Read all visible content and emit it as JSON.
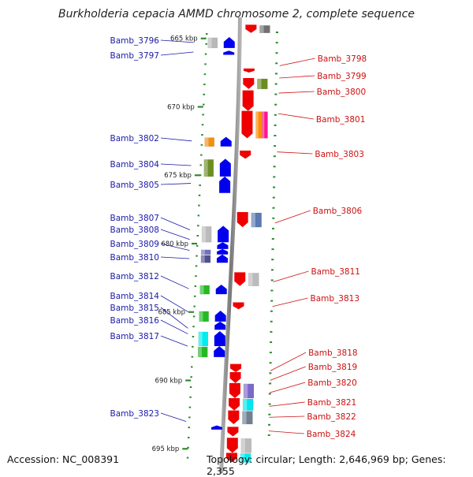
{
  "title": "Burkholderia cepacia AMMD chromosome 2, complete sequence",
  "footer": {
    "accession": "Accession: NC_008391",
    "topology": "Topology: circular; Length: 2,646,969 bp; Genes: 2,355"
  },
  "scale_marks": [
    {
      "label": "665 kbp",
      "kbp": 665
    },
    {
      "label": "670 kbp",
      "kbp": 670
    },
    {
      "label": "675 kbp",
      "kbp": 675
    },
    {
      "label": "680 kbp",
      "kbp": 680
    },
    {
      "label": "685 kbp",
      "kbp": 685
    },
    {
      "label": "690 kbp",
      "kbp": 690
    },
    {
      "label": "695 kbp",
      "kbp": 695
    }
  ],
  "genes_left": [
    {
      "label": "Bamb_3796",
      "kbp": 665.3
    },
    {
      "label": "Bamb_3797",
      "kbp": 666.0
    },
    {
      "label": "Bamb_3802",
      "kbp": 672.5
    },
    {
      "label": "Bamb_3804",
      "kbp": 674.3
    },
    {
      "label": "Bamb_3805",
      "kbp": 675.6
    },
    {
      "label": "Bamb_3807",
      "kbp": 679.0
    },
    {
      "label": "Bamb_3808",
      "kbp": 679.7
    },
    {
      "label": "Bamb_3809",
      "kbp": 680.5
    },
    {
      "label": "Bamb_3810",
      "kbp": 681.1
    },
    {
      "label": "Bamb_3812",
      "kbp": 683.3
    },
    {
      "label": "Bamb_3814",
      "kbp": 685.0
    },
    {
      "label": "Bamb_3815",
      "kbp": 686.2
    },
    {
      "label": "Bamb_3816",
      "kbp": 686.6
    },
    {
      "label": "Bamb_3817",
      "kbp": 687.5
    },
    {
      "label": "Bamb_3823",
      "kbp": 693.0
    }
  ],
  "genes_right": [
    {
      "label": "Bamb_3798",
      "kbp": 667.0
    },
    {
      "label": "Bamb_3799",
      "kbp": 667.9
    },
    {
      "label": "Bamb_3800",
      "kbp": 669.0
    },
    {
      "label": "Bamb_3801",
      "kbp": 670.5
    },
    {
      "label": "Bamb_3803",
      "kbp": 673.3
    },
    {
      "label": "Bamb_3806",
      "kbp": 678.5
    },
    {
      "label": "Bamb_3811",
      "kbp": 682.8
    },
    {
      "label": "Bamb_3813",
      "kbp": 684.6
    },
    {
      "label": "Bamb_3818",
      "kbp": 689.3
    },
    {
      "label": "Bamb_3819",
      "kbp": 690.0
    },
    {
      "label": "Bamb_3820",
      "kbp": 690.9
    },
    {
      "label": "Bamb_3821",
      "kbp": 691.9
    },
    {
      "label": "Bamb_3822",
      "kbp": 692.7
    },
    {
      "label": "Bamb_3824",
      "kbp": 693.7
    }
  ],
  "colors": {
    "left_label": "#1a1aa8",
    "right_label": "#cc1111",
    "forward_strand": "#0000ee",
    "reverse_strand": "#ee0000",
    "tick": "#2e8b2e",
    "backbone": "#9a9a9a"
  }
}
